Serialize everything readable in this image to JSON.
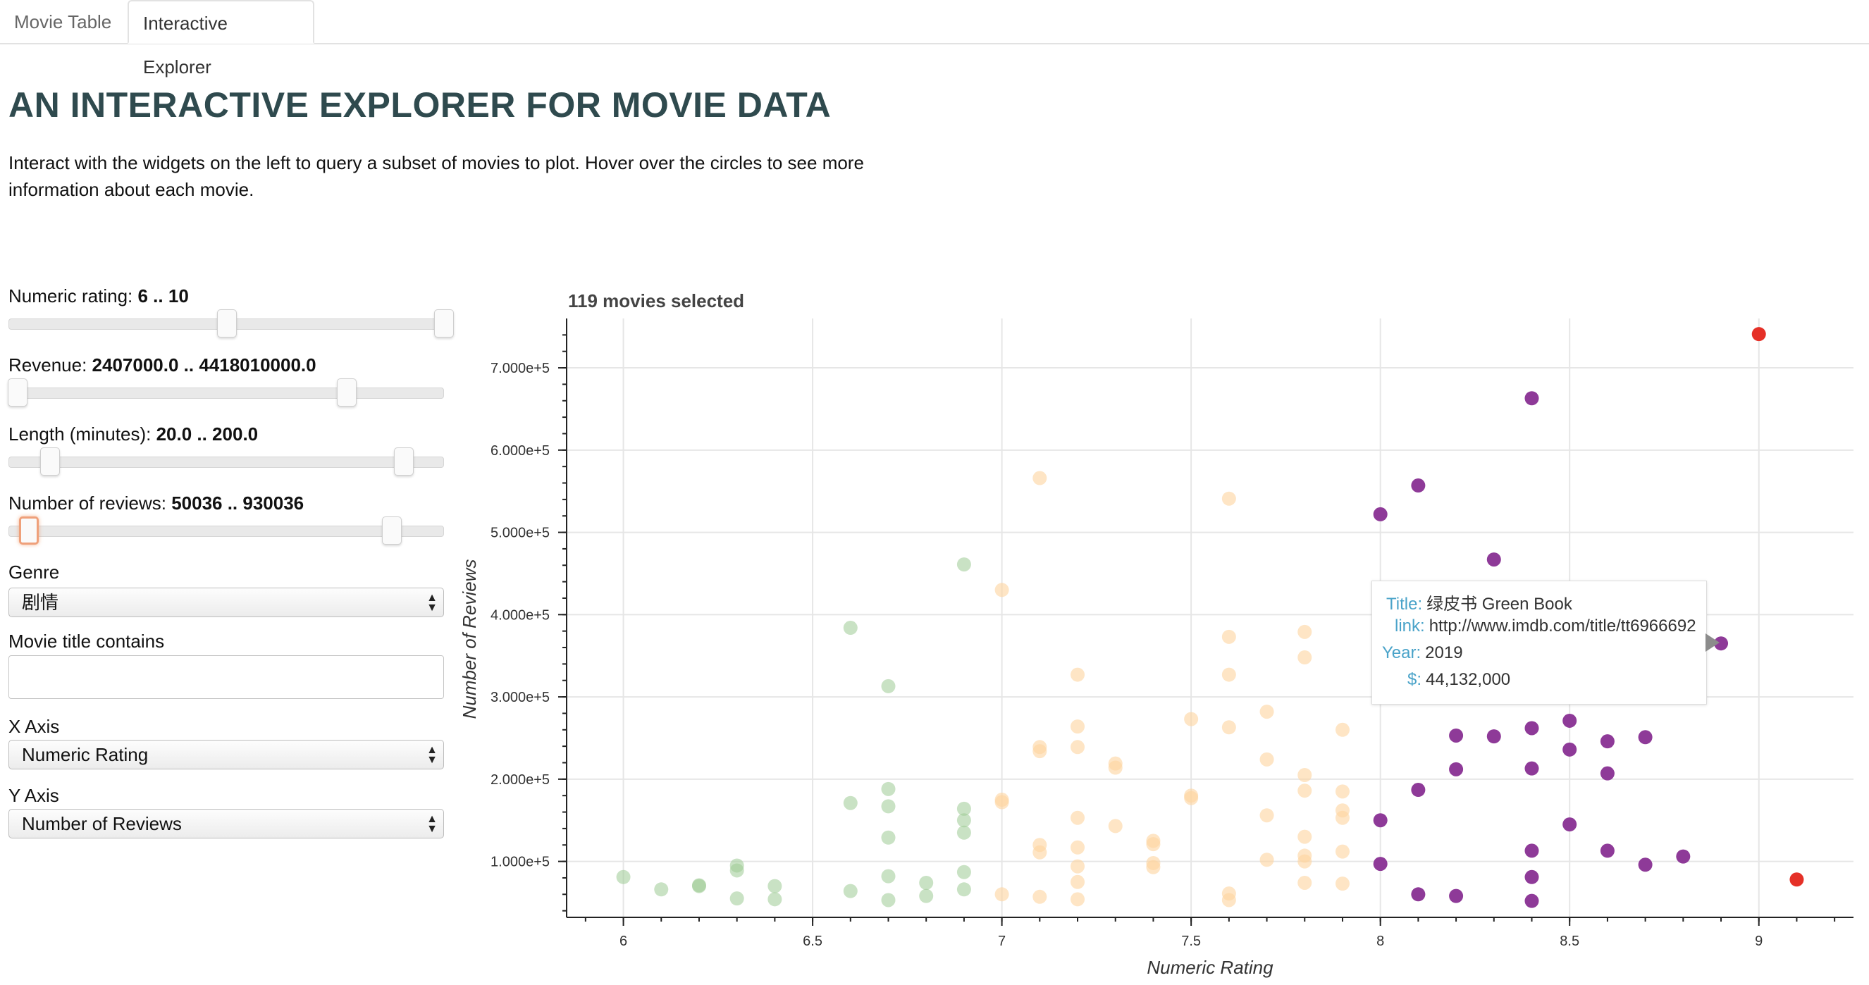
{
  "tabs": [
    "Movie Table",
    "Interactive Explorer"
  ],
  "header": {
    "title": "AN INTERACTIVE EXPLORER FOR MOVIE DATA",
    "description": "Interact with the widgets on the left to query a subset of movies to plot. Hover over the circles to see more information about each movie."
  },
  "controls": {
    "rating": {
      "label": "Numeric rating: ",
      "value": "6 .. 10",
      "range": [
        0,
        10
      ],
      "selected": [
        6,
        10
      ]
    },
    "revenue": {
      "label": "Revenue: ",
      "value": "2407000.0 .. 4418010000.0",
      "range": [
        2407000,
        5656000000
      ],
      "selected": [
        2407000,
        4418010000
      ]
    },
    "length": {
      "label": "Length (minutes): ",
      "value": "20.0 .. 200.0",
      "range": [
        0,
        220
      ],
      "selected": [
        20,
        200
      ]
    },
    "reviews": {
      "label": "Number of reviews: ",
      "value": "50036 .. 930036",
      "range": [
        0,
        1100000
      ],
      "selected": [
        50036,
        930036
      ]
    },
    "genre": {
      "label": "Genre",
      "value": "剧情"
    },
    "title_filter": {
      "label": "Movie title contains",
      "value": ""
    },
    "x_axis": {
      "label": "X Axis",
      "value": "Numeric Rating"
    },
    "y_axis": {
      "label": "Y Axis",
      "value": "Number of Reviews"
    }
  },
  "tooltip": {
    "title_key": "Title:",
    "title_val": "绿皮书 Green Book",
    "link_key": "link:",
    "link_val": "http://www.imdb.com/title/tt6966692",
    "year_key": "Year:",
    "year_val": "2019",
    "revenue_key": "$:",
    "revenue_val": "44,132,000"
  },
  "colors": {
    "green": "#9ccb94",
    "orange": "#fdd49e",
    "purple": "#8e3a98",
    "red": "#e53027"
  },
  "chart_data": {
    "type": "scatter",
    "title": "119 movies selected",
    "xlabel": "Numeric Rating",
    "ylabel": "Number of Reviews",
    "xlim": [
      5.85,
      9.25
    ],
    "ylim": [
      32000,
      760000
    ],
    "xticks": [
      6,
      6.5,
      7,
      7.5,
      8,
      8.5,
      9
    ],
    "xtick_labels": [
      "6",
      "6.5",
      "7",
      "7.5",
      "8",
      "8.5",
      "9"
    ],
    "yticks": [
      100000,
      200000,
      300000,
      400000,
      500000,
      600000,
      700000
    ],
    "ytick_labels": [
      "1.000e+5",
      "2.000e+5",
      "3.000e+5",
      "4.000e+5",
      "5.000e+5",
      "6.000e+5",
      "7.000e+5"
    ],
    "series": [
      {
        "name": "green",
        "color": "#9ccb94",
        "opacity": 0.55,
        "points": [
          [
            6.0,
            81000
          ],
          [
            6.1,
            66000
          ],
          [
            6.2,
            71000
          ],
          [
            6.2,
            70000
          ],
          [
            6.3,
            95000
          ],
          [
            6.3,
            89000
          ],
          [
            6.3,
            55000
          ],
          [
            6.4,
            70000
          ],
          [
            6.4,
            54000
          ],
          [
            6.6,
            384000
          ],
          [
            6.6,
            171000
          ],
          [
            6.6,
            64000
          ],
          [
            6.7,
            313000
          ],
          [
            6.7,
            188000
          ],
          [
            6.7,
            167000
          ],
          [
            6.7,
            129000
          ],
          [
            6.7,
            82000
          ],
          [
            6.7,
            53000
          ],
          [
            6.8,
            74000
          ],
          [
            6.8,
            58000
          ],
          [
            6.9,
            461000
          ],
          [
            6.9,
            164000
          ],
          [
            6.9,
            150000
          ],
          [
            6.9,
            135000
          ],
          [
            6.9,
            87000
          ],
          [
            6.9,
            66000
          ]
        ]
      },
      {
        "name": "orange",
        "color": "#fdd49e",
        "opacity": 0.6,
        "points": [
          [
            7.0,
            430000
          ],
          [
            7.0,
            175000
          ],
          [
            7.0,
            172000
          ],
          [
            7.0,
            60000
          ],
          [
            7.1,
            566000
          ],
          [
            7.1,
            239000
          ],
          [
            7.1,
            234000
          ],
          [
            7.1,
            120000
          ],
          [
            7.1,
            111000
          ],
          [
            7.1,
            57000
          ],
          [
            7.2,
            327000
          ],
          [
            7.2,
            264000
          ],
          [
            7.2,
            239000
          ],
          [
            7.2,
            153000
          ],
          [
            7.2,
            117000
          ],
          [
            7.2,
            94000
          ],
          [
            7.2,
            75000
          ],
          [
            7.2,
            54000
          ],
          [
            7.3,
            219000
          ],
          [
            7.3,
            214000
          ],
          [
            7.3,
            143000
          ],
          [
            7.4,
            125000
          ],
          [
            7.4,
            121000
          ],
          [
            7.4,
            98000
          ],
          [
            7.4,
            93000
          ],
          [
            7.5,
            273000
          ],
          [
            7.5,
            180000
          ],
          [
            7.5,
            177000
          ],
          [
            7.6,
            541000
          ],
          [
            7.6,
            373000
          ],
          [
            7.6,
            327000
          ],
          [
            7.6,
            263000
          ],
          [
            7.6,
            61000
          ],
          [
            7.6,
            53000
          ],
          [
            7.7,
            282000
          ],
          [
            7.7,
            224000
          ],
          [
            7.7,
            156000
          ],
          [
            7.7,
            102000
          ],
          [
            7.8,
            379000
          ],
          [
            7.8,
            348000
          ],
          [
            7.8,
            205000
          ],
          [
            7.8,
            186000
          ],
          [
            7.8,
            130000
          ],
          [
            7.8,
            107000
          ],
          [
            7.8,
            100000
          ],
          [
            7.8,
            74000
          ],
          [
            7.9,
            260000
          ],
          [
            7.9,
            185000
          ],
          [
            7.9,
            162000
          ],
          [
            7.9,
            153000
          ],
          [
            7.9,
            112000
          ],
          [
            7.9,
            73000
          ],
          [
            8.0,
            333000
          ],
          [
            8.0,
            308000
          ],
          [
            8.6,
            327000
          ],
          [
            8.7,
            432000
          ]
        ]
      },
      {
        "name": "purple",
        "color": "#8e3a98",
        "opacity": 1,
        "points": [
          [
            8.0,
            522000
          ],
          [
            8.0,
            150000
          ],
          [
            8.0,
            97000
          ],
          [
            8.1,
            557000
          ],
          [
            8.1,
            187000
          ],
          [
            8.1,
            60000
          ],
          [
            8.2,
            253000
          ],
          [
            8.2,
            212000
          ],
          [
            8.2,
            58000
          ],
          [
            8.3,
            467000
          ],
          [
            8.3,
            252000
          ],
          [
            8.4,
            663000
          ],
          [
            8.4,
            262000
          ],
          [
            8.4,
            213000
          ],
          [
            8.4,
            113000
          ],
          [
            8.4,
            81000
          ],
          [
            8.4,
            52000
          ],
          [
            8.5,
            271000
          ],
          [
            8.5,
            236000
          ],
          [
            8.5,
            145000
          ],
          [
            8.6,
            246000
          ],
          [
            8.6,
            207000
          ],
          [
            8.6,
            113000
          ],
          [
            8.7,
            251000
          ],
          [
            8.7,
            96000
          ],
          [
            8.8,
            106000
          ],
          [
            8.9,
            365000
          ]
        ]
      },
      {
        "name": "red",
        "color": "#e53027",
        "opacity": 1,
        "points": [
          [
            9.0,
            741000
          ],
          [
            9.1,
            78000
          ]
        ]
      }
    ]
  }
}
